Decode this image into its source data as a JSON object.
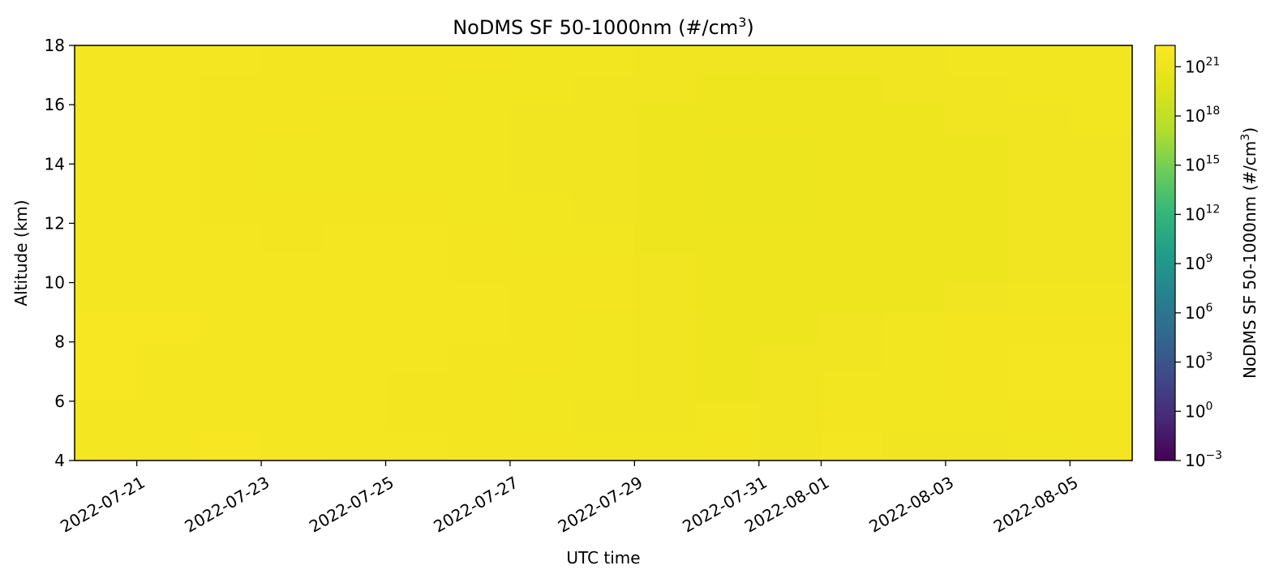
{
  "chart_data": {
    "type": "heatmap",
    "title": "NoDMS SF 50-1000nm (#/cm",
    "title_sup": "3",
    "title_end": ")",
    "xlabel": "UTC time",
    "ylabel": "Altitude (km)",
    "x_range": [
      "2022-07-20",
      "2022-08-06"
    ],
    "x_ticks": [
      "2022-07-21",
      "2022-07-23",
      "2022-07-25",
      "2022-07-27",
      "2022-07-29",
      "2022-07-31",
      "2022-08-01",
      "2022-08-03",
      "2022-08-05"
    ],
    "ylim": [
      4,
      18
    ],
    "y_ticks": [
      4,
      6,
      8,
      10,
      12,
      14,
      16,
      18
    ],
    "colorbar": {
      "label": "NoDMS SF 50-1000nm (#/cm",
      "label_sup": "3",
      "label_end": ")",
      "scale": "log",
      "colormap": "viridis",
      "range": [
        -3,
        22.3
      ],
      "ticks": [
        {
          "base": "10",
          "exp": "−3",
          "value": -3
        },
        {
          "base": "10",
          "exp": "0",
          "value": 0
        },
        {
          "base": "10",
          "exp": "3",
          "value": 3
        },
        {
          "base": "10",
          "exp": "6",
          "value": 6
        },
        {
          "base": "10",
          "exp": "9",
          "value": 9
        },
        {
          "base": "10",
          "exp": "12",
          "value": 12
        },
        {
          "base": "10",
          "exp": "15",
          "value": 15
        },
        {
          "base": "10",
          "exp": "18",
          "value": 18
        },
        {
          "base": "10",
          "exp": "21",
          "value": 21
        }
      ]
    },
    "cells": {
      "altitudes": [
        4.5,
        5.5,
        6.5,
        7.5,
        8.5,
        9.5,
        10.5,
        11.5,
        12.5,
        13.5,
        14.5,
        15.5,
        16.5,
        17.5
      ],
      "log10_values_by_altitude": [
        [
          21.7,
          21.6,
          21.8,
          21.7,
          21.6,
          21.6,
          21.5,
          21.5,
          21.4,
          21.4,
          21.5,
          21.3,
          21.6,
          21.3,
          21.3,
          21.4,
          21.5
        ],
        [
          21.7,
          21.7,
          21.7,
          21.6,
          21.6,
          21.5,
          21.5,
          21.4,
          21.3,
          21.3,
          21.4,
          21.3,
          21.5,
          21.4,
          21.4,
          21.5,
          21.5
        ],
        [
          21.8,
          21.7,
          21.7,
          21.6,
          21.6,
          21.5,
          21.5,
          21.4,
          21.4,
          21.3,
          21.2,
          21.3,
          21.4,
          21.4,
          21.5,
          21.6,
          21.6
        ],
        [
          21.8,
          21.7,
          21.6,
          21.7,
          21.6,
          21.6,
          21.5,
          21.5,
          21.4,
          21.3,
          21.2,
          21.3,
          21.3,
          21.4,
          21.5,
          21.6,
          21.6
        ],
        [
          21.8,
          21.8,
          21.7,
          21.7,
          21.6,
          21.6,
          21.6,
          21.5,
          21.4,
          21.3,
          21.2,
          21.2,
          21.3,
          21.4,
          21.5,
          21.5,
          21.5
        ],
        [
          21.7,
          21.7,
          21.7,
          21.7,
          21.6,
          21.6,
          21.6,
          21.5,
          21.5,
          21.3,
          21.1,
          21.1,
          21.2,
          21.2,
          21.3,
          21.4,
          21.4
        ],
        [
          21.7,
          21.7,
          21.6,
          21.6,
          21.6,
          21.6,
          21.5,
          21.5,
          21.5,
          21.3,
          21.1,
          21.1,
          21.1,
          21.2,
          21.2,
          21.3,
          21.3
        ],
        [
          21.7,
          21.7,
          21.6,
          21.5,
          21.6,
          21.6,
          21.5,
          21.4,
          21.4,
          21.2,
          21.1,
          21.1,
          21.1,
          21.1,
          21.2,
          21.3,
          21.3
        ],
        [
          21.7,
          21.6,
          21.5,
          21.5,
          21.5,
          21.5,
          21.4,
          21.4,
          21.3,
          21.1,
          21.0,
          21.0,
          21.1,
          21.1,
          21.2,
          21.3,
          21.3
        ],
        [
          21.6,
          21.6,
          21.5,
          21.4,
          21.4,
          21.4,
          21.4,
          21.3,
          21.3,
          21.1,
          21.0,
          21.0,
          21.1,
          21.1,
          21.2,
          21.3,
          21.3
        ],
        [
          21.6,
          21.6,
          21.5,
          21.4,
          21.4,
          21.4,
          21.4,
          21.3,
          21.3,
          21.1,
          21.0,
          21.0,
          21.1,
          21.1,
          21.2,
          21.3,
          21.3
        ],
        [
          21.6,
          21.6,
          21.5,
          21.5,
          21.4,
          21.4,
          21.4,
          21.3,
          21.3,
          21.2,
          21.1,
          21.1,
          21.2,
          21.2,
          21.3,
          21.3,
          21.4
        ],
        [
          21.6,
          21.6,
          21.5,
          21.5,
          21.5,
          21.5,
          21.4,
          21.4,
          21.3,
          21.3,
          21.2,
          21.2,
          21.2,
          21.3,
          21.3,
          21.4,
          21.4
        ],
        [
          21.6,
          21.6,
          21.6,
          21.5,
          21.5,
          21.5,
          21.5,
          21.4,
          21.4,
          21.3,
          21.3,
          21.3,
          21.3,
          21.3,
          21.4,
          21.4,
          21.4
        ]
      ]
    }
  }
}
